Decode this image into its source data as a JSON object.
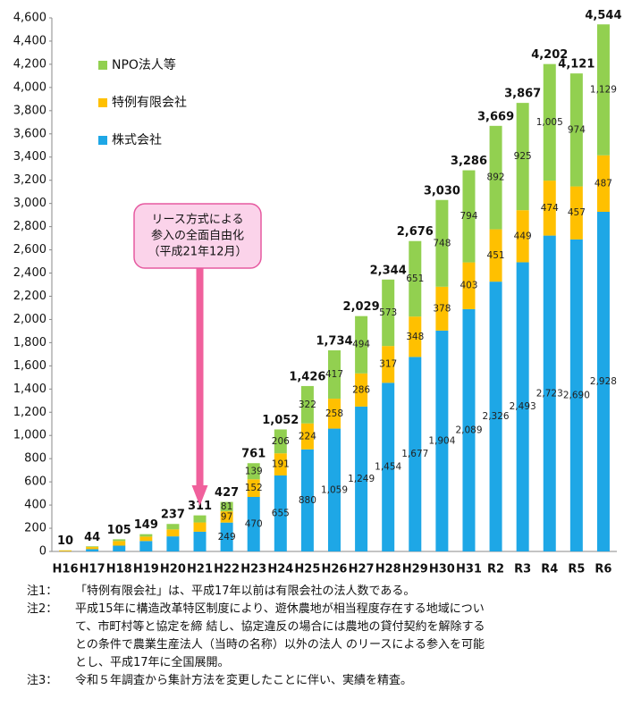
{
  "chart_data": {
    "type": "stacked_bar",
    "categories": [
      "H16",
      "H17",
      "H18",
      "H19",
      "H20",
      "H21",
      "H22",
      "H23",
      "H24",
      "H25",
      "H26",
      "H27",
      "H28",
      "H29",
      "H30",
      "H31",
      "R2",
      "R3",
      "R4",
      "R5",
      "R6"
    ],
    "series": [
      {
        "name": "株式会社",
        "color": "#1ea7e6",
        "values": [
          1,
          20,
          50,
          90,
          130,
          170,
          249,
          470,
          655,
          880,
          1059,
          1249,
          1454,
          1677,
          1904,
          2089,
          2326,
          2493,
          2723,
          2690,
          2928
        ],
        "value_labels": [
          null,
          null,
          null,
          null,
          null,
          null,
          "249",
          "470",
          "655",
          "880",
          "1,059",
          "1,249",
          "1,454",
          "1,677",
          "1,904",
          "2,089",
          "2,326",
          "2,493",
          "2,723",
          "2,690",
          "2,928"
        ]
      },
      {
        "name": "特例有限会社",
        "color": "#ffc000",
        "values": [
          8,
          18,
          40,
          38,
          60,
          80,
          97,
          152,
          191,
          224,
          258,
          286,
          317,
          348,
          378,
          403,
          451,
          449,
          474,
          457,
          487
        ],
        "value_labels": [
          null,
          null,
          null,
          null,
          null,
          null,
          "97",
          "152",
          "191",
          "224",
          "258",
          "286",
          "317",
          "348",
          "378",
          "403",
          "451",
          "449",
          "474",
          "457",
          "487"
        ]
      },
      {
        "name": "NPO法人等",
        "color": "#92d050",
        "values": [
          1,
          6,
          15,
          21,
          47,
          61,
          81,
          139,
          206,
          322,
          417,
          494,
          573,
          651,
          748,
          794,
          892,
          925,
          1005,
          974,
          1129
        ],
        "value_labels": [
          null,
          null,
          null,
          null,
          null,
          null,
          "81",
          "139",
          "206",
          "322",
          "417",
          "494",
          "573",
          "651",
          "748",
          "794",
          "892",
          "925",
          "1,005",
          "974",
          "1,129"
        ]
      }
    ],
    "totals": [
      10,
      44,
      105,
      149,
      237,
      311,
      427,
      761,
      1052,
      1426,
      1734,
      2029,
      2344,
      2676,
      3030,
      3286,
      3669,
      3867,
      4202,
      4121,
      4544
    ],
    "total_labels": [
      "10",
      "44",
      "105",
      "149",
      "237",
      "311",
      "427",
      "761",
      "1,052",
      "1,426",
      "1,734",
      "2,029",
      "2,344",
      "2,676",
      "3,030",
      "3,286",
      "3,669",
      "3,867",
      "4,202",
      "4,121",
      "4,544"
    ],
    "ylim": [
      0,
      4600
    ],
    "yticks": [
      0,
      200,
      400,
      600,
      800,
      {
        "value": 1000,
        "label": "1,000"
      },
      {
        "value": 1200,
        "label": "1,200"
      },
      {
        "value": 1400,
        "label": "1,400"
      },
      {
        "value": 1600,
        "label": "1,600"
      },
      {
        "value": 1800,
        "label": "1,800"
      },
      {
        "value": 2000,
        "label": "2,000"
      },
      {
        "value": 2200,
        "label": "2,200"
      },
      {
        "value": 2400,
        "label": "2,400"
      },
      {
        "value": 2600,
        "label": "2,600"
      },
      {
        "value": 2800,
        "label": "2,800"
      },
      {
        "value": 3000,
        "label": "3,000"
      },
      {
        "value": 3200,
        "label": "3,200"
      },
      {
        "value": 3400,
        "label": "3,400"
      },
      {
        "value": 3600,
        "label": "3,600"
      },
      {
        "value": 3800,
        "label": "3,800"
      },
      {
        "value": 4000,
        "label": "4,000"
      },
      {
        "value": 4200,
        "label": "4,200"
      },
      {
        "value": 4400,
        "label": "4,400"
      },
      {
        "value": 4600,
        "label": "4,600"
      }
    ],
    "annotation": {
      "lines": [
        "リース方式による",
        "参入の全面自由化",
        "（平成21年12月）"
      ],
      "category": "H21"
    },
    "notes": [
      {
        "label": "注1：",
        "lines": [
          "「特例有限会社」は、平成17年以前は有限会社の法人数である。"
        ]
      },
      {
        "label": "注2：",
        "lines": [
          "平成15年に構造改革特区制度により、遊休農地が相当程度存在する地域につい",
          "て、市町村等と協定を締 結し、協定違反の場合には農地の貸付契約を解除する",
          "との条件で農業生産法人（当時の名称）以外の法人 のリースによる参入を可能",
          "とし、平成17年に全国展開。"
        ]
      },
      {
        "label": "注3：",
        "lines": [
          "令和５年調査から集計方法を変更したことに伴い、実績を精査。"
        ]
      }
    ]
  }
}
